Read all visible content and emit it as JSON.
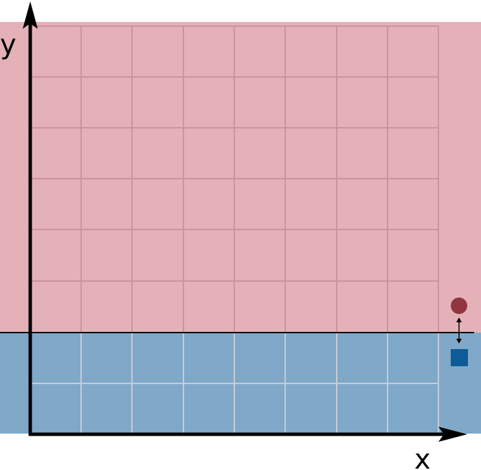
{
  "axes": {
    "x_label": "x",
    "y_label": "y"
  },
  "colors": {
    "upper_region": "#e5b1b8",
    "upper_grid": "#cd929c",
    "lower_region": "#80a8c8",
    "lower_grid": "#c8cdd6",
    "axis": "#000000",
    "boundary": "#000000",
    "circle_marker": "#913640",
    "square_marker": "#0d5c98",
    "connector": "#000000"
  },
  "icons": {
    "circle_marker": "circle-marker-icon",
    "square_marker": "square-marker-icon",
    "connector": "double-arrow-icon"
  }
}
